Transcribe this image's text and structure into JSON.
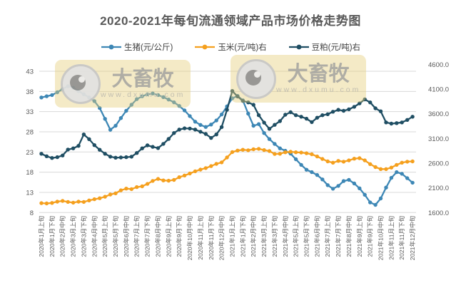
{
  "title": "2020-2021年每旬流通领域产品市场价格走势图",
  "watermark": {
    "brand": "大畜牧",
    "url": "www.dxumu.com"
  },
  "axes": {
    "left_ticks": [
      "8",
      "13",
      "18",
      "23",
      "28",
      "33",
      "38",
      "43"
    ],
    "right_tick_labels": [
      "1600.0",
      "2100.0",
      "2600.0",
      "3100.0",
      "3600.0",
      "4100.0",
      "4600.0"
    ]
  },
  "chart_data": {
    "type": "line",
    "title": "2020-2021年每旬流通领域产品市场价格走势图",
    "left_ylim": [
      8,
      43
    ],
    "right_ylim": [
      1600,
      4600
    ],
    "grid": true,
    "legend_position": "top",
    "n_points": 71,
    "x_tick_every": 2,
    "categories": [
      "2020年1月上旬",
      "2020年1月下旬",
      "2020年2月中旬",
      "2020年3月上旬",
      "2020年3月下旬",
      "2020年4月中旬",
      "2020年5月上旬",
      "2020年5月下旬",
      "2020年6月中旬",
      "2020年7月上旬",
      "2020年7月下旬",
      "2020年8月中旬",
      "2020年9月上旬",
      "2020年9月下旬",
      "2020年10月中旬",
      "2020年11月上旬",
      "2020年11月下旬",
      "2020年12月中旬",
      "2021年1月上旬",
      "2021年1月下旬",
      "2021年2月中旬",
      "2021年3月上旬",
      "2021年3月下旬",
      "2021年4月中旬",
      "2021年5月上旬",
      "2021年5月下旬",
      "2021年6月中旬",
      "2021年7月上旬",
      "2021年7月下旬",
      "2021年8月中旬",
      "2021年9月上旬",
      "2021年9月下旬",
      "2021年10月中旬",
      "2021年11月上旬",
      "2021年11月下旬",
      "2021年12月中旬"
    ],
    "series": [
      {
        "name": "生猪(元/公斤)",
        "axis": "left",
        "color": "#3d87b5",
        "values": [
          36.5,
          36.8,
          37.1,
          37.8,
          38.6,
          39.3,
          38.9,
          38.1,
          37.3,
          36.5,
          35.6,
          33.9,
          31.2,
          28.5,
          29.5,
          31.4,
          33.2,
          34.7,
          36.1,
          36.8,
          37.3,
          37.5,
          37.1,
          36.6,
          36.0,
          35.3,
          34.4,
          33.3,
          31.9,
          30.5,
          29.7,
          29.2,
          29.8,
          30.8,
          32.3,
          34.3,
          36.3,
          36.9,
          35.8,
          32.5,
          29.5,
          29.9,
          27.7,
          26.2,
          25.0,
          23.9,
          23.3,
          22.6,
          21.2,
          19.8,
          18.6,
          18.0,
          17.3,
          16.2,
          14.8,
          13.9,
          14.6,
          15.8,
          16.1,
          15.2,
          14.0,
          12.4,
          10.5,
          9.9,
          11.5,
          14.2,
          16.6,
          18.0,
          17.6,
          16.5,
          15.4
        ]
      },
      {
        "name": "玉米(元/吨)右",
        "axis": "right",
        "color": "#f5a01e",
        "values": [
          1790,
          1785,
          1795,
          1820,
          1835,
          1815,
          1800,
          1820,
          1815,
          1845,
          1870,
          1890,
          1920,
          1965,
          1990,
          2050,
          2085,
          2075,
          2115,
          2130,
          2180,
          2240,
          2280,
          2250,
          2245,
          2260,
          2315,
          2350,
          2390,
          2435,
          2470,
          2500,
          2540,
          2585,
          2615,
          2715,
          2825,
          2855,
          2870,
          2860,
          2880,
          2890,
          2865,
          2845,
          2785,
          2790,
          2820,
          2830,
          2820,
          2815,
          2800,
          2780,
          2735,
          2685,
          2635,
          2610,
          2645,
          2630,
          2655,
          2690,
          2700,
          2655,
          2580,
          2520,
          2480,
          2480,
          2510,
          2565,
          2610,
          2630,
          2635
        ]
      },
      {
        "name": "豆粕(元/吨)右",
        "axis": "right",
        "color": "#1f4e63",
        "values": [
          2790,
          2740,
          2705,
          2720,
          2755,
          2875,
          2900,
          2950,
          3180,
          3085,
          2965,
          2870,
          2790,
          2730,
          2710,
          2715,
          2720,
          2730,
          2805,
          2900,
          2960,
          2930,
          2905,
          2990,
          3090,
          3210,
          3280,
          3305,
          3300,
          3280,
          3235,
          3190,
          3110,
          3180,
          3330,
          3680,
          4060,
          3950,
          3860,
          3830,
          3780,
          3570,
          3420,
          3295,
          3375,
          3450,
          3580,
          3630,
          3570,
          3540,
          3500,
          3430,
          3520,
          3570,
          3590,
          3640,
          3680,
          3660,
          3690,
          3740,
          3810,
          3890,
          3830,
          3710,
          3650,
          3425,
          3400,
          3410,
          3425,
          3475,
          3540
        ]
      }
    ]
  }
}
